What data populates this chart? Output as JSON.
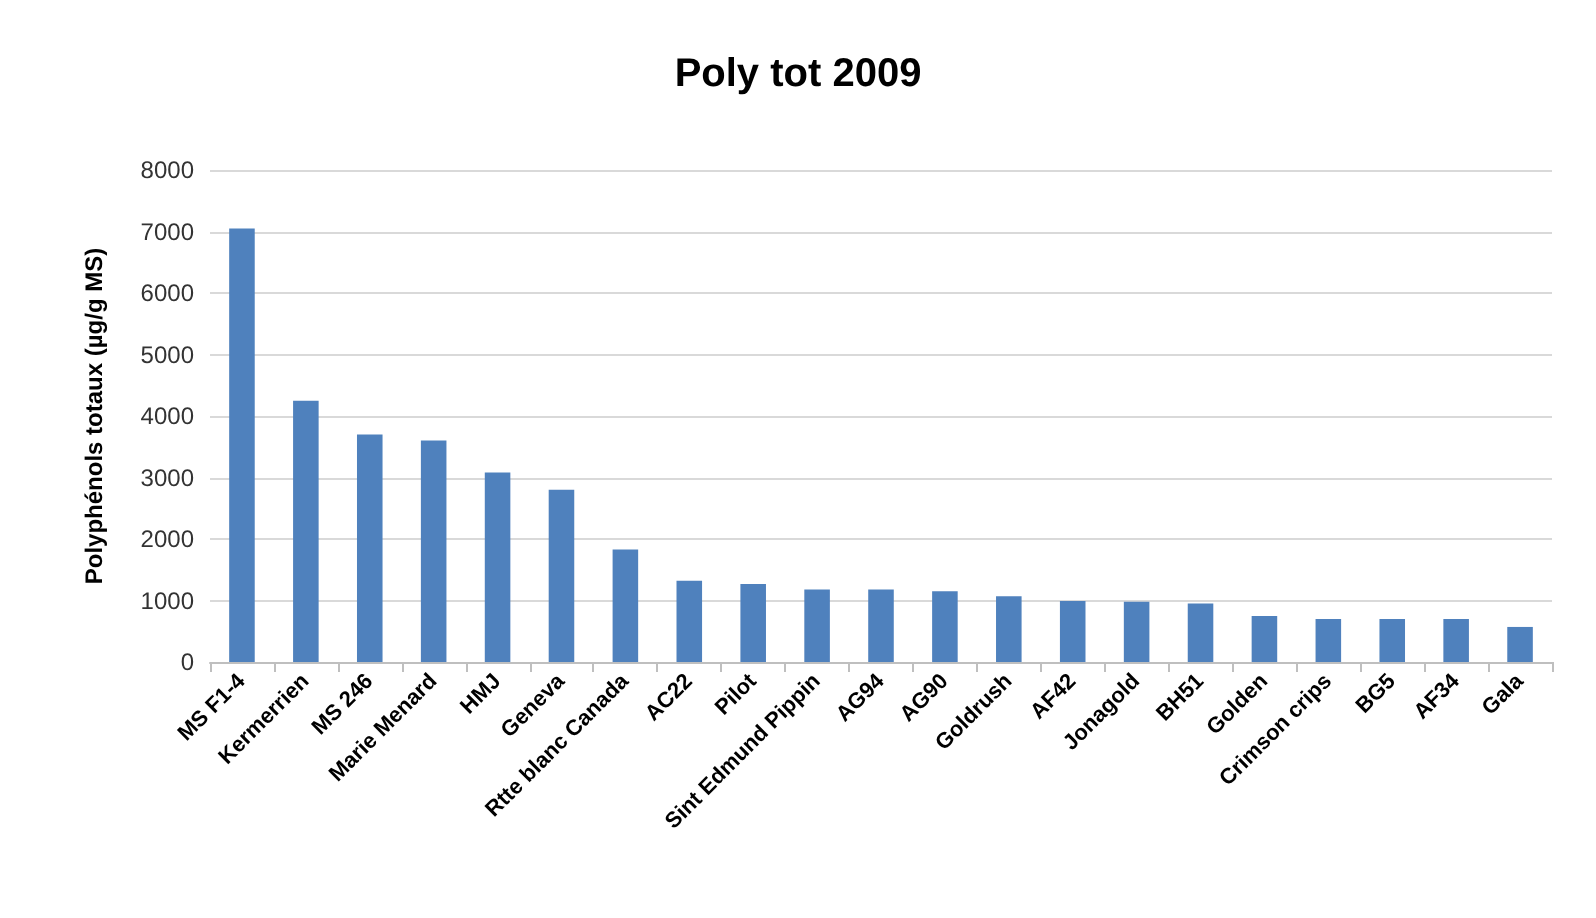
{
  "chart_data": {
    "type": "bar",
    "title": "Poly tot 2009",
    "ylabel": "Polyphénols totaux (µg/g MS)",
    "categories": [
      "MS F1-4",
      "Kermerrien",
      "MS 246",
      "Marie Menard",
      "HMJ",
      "Geneva",
      "Rtte blanc Canada",
      "AC22",
      "Pilot",
      "Sint Edmund Pippin",
      "AG94",
      "AG90",
      "Goldrush",
      "AF42",
      "Jonagold",
      "BH51",
      "Golden",
      "Crimson crips",
      "BG5",
      "AF34",
      "Gala"
    ],
    "values": [
      7050,
      4250,
      3700,
      3600,
      3080,
      2800,
      1830,
      1320,
      1270,
      1180,
      1180,
      1150,
      1070,
      990,
      980,
      950,
      750,
      700,
      700,
      700,
      570
    ],
    "color": "#4f81bd",
    "ylim": [
      0,
      8000
    ],
    "yticks": [
      0,
      1000,
      2000,
      3000,
      4000,
      5000,
      6000,
      7000,
      8000
    ],
    "grid": "y"
  }
}
